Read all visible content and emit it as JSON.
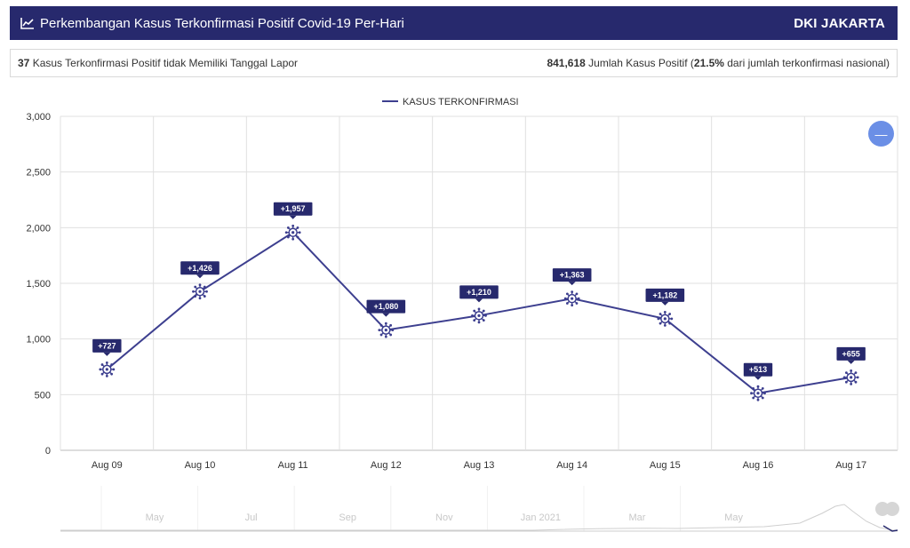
{
  "header": {
    "title": "Perkembangan Kasus Terkonfirmasi Positif Covid-19 Per-Hari",
    "region": "DKI JAKARTA",
    "icon": "line-chart-icon"
  },
  "info": {
    "left_count": "37",
    "left_text": " Kasus Terkonfirmasi Positif tidak Memiliki Tanggal Lapor",
    "right_count": "841,618",
    "right_text_1": " Jumlah Kasus Positif (",
    "right_percent": "21.5%",
    "right_text_2": " dari jumlah terkonfirmasi nasional)"
  },
  "zoom_button": {
    "icon": "minus-icon",
    "color": "#6b8fe6"
  },
  "chart_data": {
    "type": "line",
    "legend": "KASUS TERKONFIRMASI",
    "legend_position": "top-center",
    "categories": [
      "Aug 09",
      "Aug 10",
      "Aug 11",
      "Aug 12",
      "Aug 13",
      "Aug 14",
      "Aug 15",
      "Aug 16",
      "Aug 17"
    ],
    "series": [
      {
        "name": "KASUS TERKONFIRMASI",
        "values": [
          727,
          1426,
          1957,
          1080,
          1210,
          1363,
          1182,
          513,
          655
        ],
        "labels": [
          "+727",
          "+1,426",
          "+1,957",
          "+1,080",
          "+1,210",
          "+1,363",
          "+1,182",
          "+513",
          "+655"
        ],
        "color": "#3d3f8f",
        "marker": "virus-icon"
      }
    ],
    "ylim": [
      0,
      3000
    ],
    "yticks": [
      0,
      500,
      1000,
      1500,
      2000,
      2500,
      3000
    ],
    "ytick_labels": [
      "0",
      "500",
      "1,000",
      "1,500",
      "2,000",
      "2,500",
      "3,000"
    ],
    "grid": true,
    "navigator": {
      "labels": [
        "May",
        "Jul",
        "Sep",
        "Nov",
        "Jan 2021",
        "Mar",
        "May"
      ]
    }
  },
  "colors": {
    "header_bg": "#27296d",
    "badge_bg": "#27296d",
    "line": "#3d3f8f",
    "grid": "#e0e0e0"
  }
}
